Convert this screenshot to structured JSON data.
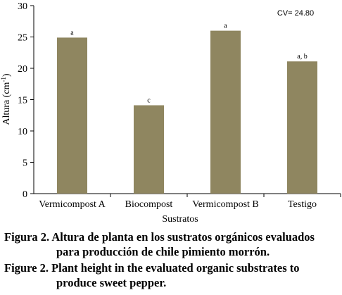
{
  "chart_data": {
    "type": "bar",
    "categories": [
      "Vermicompost A",
      "Biocompost",
      "Vermicompost B",
      "Testigo"
    ],
    "values": [
      24.9,
      14.1,
      26.0,
      21.1
    ],
    "significance_letters": [
      "a",
      "c",
      "a",
      "a, b"
    ],
    "xlabel": "Sustratos",
    "ylabel": "Altura (cm",
    "ylabel_superscript": "-1",
    "ylabel_close": ")",
    "ylim": [
      0,
      30
    ],
    "yticks": [
      "0",
      "5",
      "10",
      "15",
      "20",
      "25",
      "30"
    ],
    "annotation": "CV= 24.80",
    "bar_color": "#8f8660",
    "grid": false
  },
  "caption_es": {
    "line1": "Figura 2. Altura de planta en los sustratos orgánicos evaluados",
    "line2": "para producción de chile pimiento morrón."
  },
  "caption_en": {
    "line1": "Figure 2. Plant height in the evaluated organic substrates to",
    "line2": "produce sweet pepper."
  }
}
